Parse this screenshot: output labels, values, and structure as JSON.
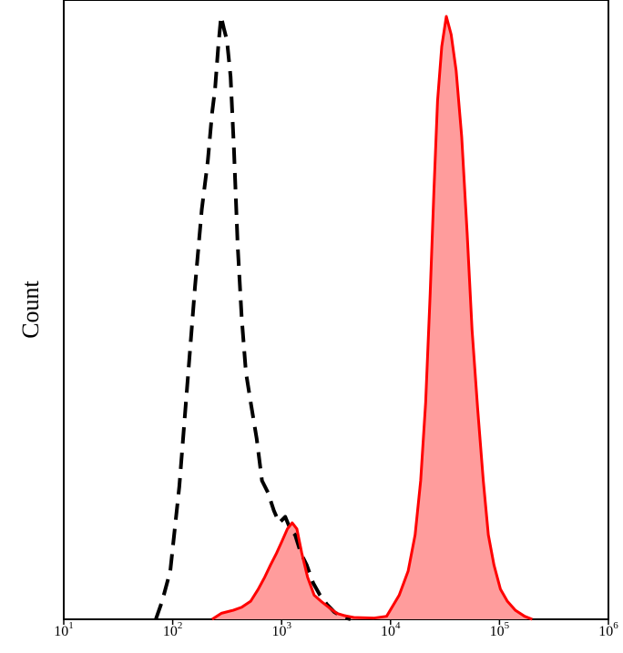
{
  "chart_data": {
    "type": "area",
    "title": "",
    "xlabel": "",
    "ylabel": "Count",
    "x_scale": "log10",
    "xlim": [
      10,
      1000000
    ],
    "ylim": [
      0,
      100
    ],
    "grid": false,
    "legend": "none",
    "x_ticks": [
      {
        "value": 10,
        "label_base": "10",
        "label_exp": "1"
      },
      {
        "value": 100,
        "label_base": "10",
        "label_exp": "2"
      },
      {
        "value": 1000,
        "label_base": "10",
        "label_exp": "3"
      },
      {
        "value": 10000,
        "label_base": "10",
        "label_exp": "4"
      },
      {
        "value": 100000,
        "label_base": "10",
        "label_exp": "5"
      },
      {
        "value": 1000000,
        "label_base": "10",
        "label_exp": "6"
      }
    ],
    "series": [
      {
        "style": "dashed",
        "color": "#000000",
        "fill": "none",
        "points": [
          [
            70,
            0
          ],
          [
            80,
            3
          ],
          [
            95,
            8
          ],
          [
            115,
            22
          ],
          [
            135,
            38
          ],
          [
            160,
            55
          ],
          [
            185,
            68
          ],
          [
            210,
            76
          ],
          [
            230,
            84
          ],
          [
            245,
            88
          ],
          [
            262,
            95
          ],
          [
            278,
            100
          ],
          [
            295,
            98
          ],
          [
            315,
            96
          ],
          [
            340,
            90
          ],
          [
            365,
            78
          ],
          [
            395,
            62
          ],
          [
            430,
            50
          ],
          [
            470,
            41
          ],
          [
            520,
            36
          ],
          [
            590,
            30
          ],
          [
            660,
            23
          ],
          [
            750,
            21
          ],
          [
            850,
            18
          ],
          [
            950,
            16
          ],
          [
            1080,
            17
          ],
          [
            1200,
            15
          ],
          [
            1330,
            14
          ],
          [
            1500,
            11
          ],
          [
            1700,
            9
          ],
          [
            1950,
            6
          ],
          [
            2250,
            4
          ],
          [
            2600,
            2.5
          ],
          [
            3050,
            1.2
          ],
          [
            3600,
            0.4
          ],
          [
            4300,
            0
          ]
        ]
      },
      {
        "style": "solid",
        "color": "#ff0000",
        "fill": "#ff9c9c",
        "points": [
          [
            230,
            0
          ],
          [
            280,
            1
          ],
          [
            360,
            1.5
          ],
          [
            430,
            2
          ],
          [
            520,
            3
          ],
          [
            610,
            5
          ],
          [
            700,
            7
          ],
          [
            790,
            9
          ],
          [
            900,
            11
          ],
          [
            1010,
            13
          ],
          [
            1130,
            15
          ],
          [
            1250,
            16
          ],
          [
            1380,
            15
          ],
          [
            1530,
            11
          ],
          [
            1730,
            7
          ],
          [
            1990,
            4
          ],
          [
            2300,
            3
          ],
          [
            2700,
            2
          ],
          [
            3200,
            1
          ],
          [
            3800,
            0.6
          ],
          [
            4600,
            0.3
          ],
          [
            7000,
            0.2
          ],
          [
            9200,
            0.5
          ],
          [
            12000,
            4
          ],
          [
            14500,
            8
          ],
          [
            16800,
            14
          ],
          [
            18900,
            23
          ],
          [
            21000,
            36
          ],
          [
            23100,
            54
          ],
          [
            25000,
            71
          ],
          [
            27000,
            86
          ],
          [
            29500,
            95
          ],
          [
            32500,
            100
          ],
          [
            36000,
            97
          ],
          [
            40000,
            91
          ],
          [
            45000,
            80
          ],
          [
            50500,
            64
          ],
          [
            56000,
            48
          ],
          [
            63000,
            35
          ],
          [
            71000,
            23
          ],
          [
            79000,
            14
          ],
          [
            89000,
            9
          ],
          [
            102000,
            5
          ],
          [
            118000,
            3
          ],
          [
            140000,
            1.5
          ],
          [
            170000,
            0.5
          ],
          [
            200000,
            0
          ]
        ]
      }
    ]
  }
}
